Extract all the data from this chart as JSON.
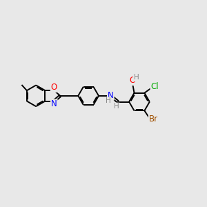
{
  "background_color": "#e8e8e8",
  "bond_color": "#000000",
  "atom_colors": {
    "O": "#ff0000",
    "N": "#0000ff",
    "Br": "#a05000",
    "Cl": "#00aa00",
    "H": "#888888",
    "C": "#000000"
  },
  "font_size": 8.5,
  "line_width": 1.4,
  "fig_width": 3.0,
  "fig_height": 3.0,
  "dpi": 100
}
